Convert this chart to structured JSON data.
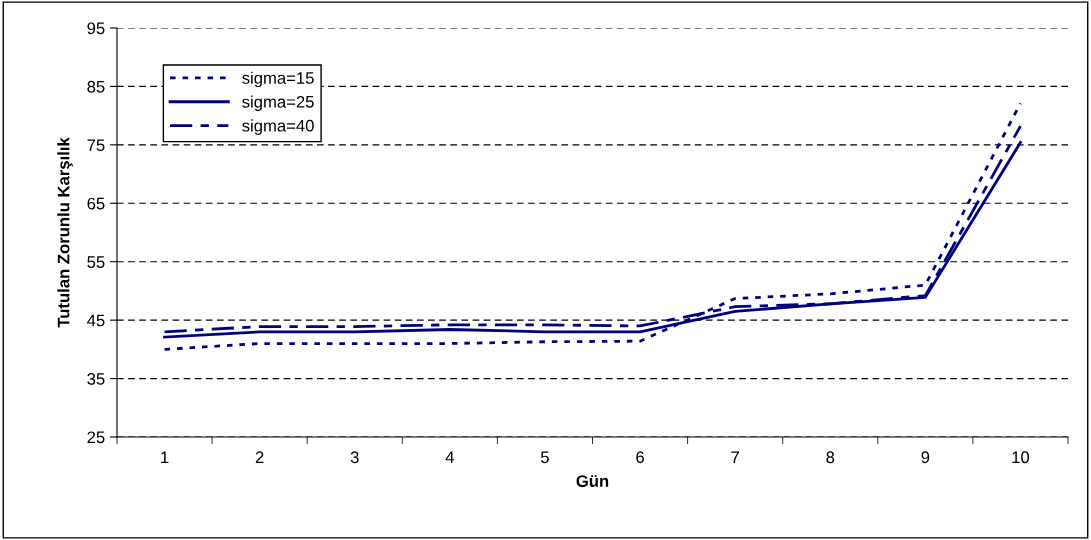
{
  "chart_data": {
    "type": "line",
    "xlabel": "Gün",
    "ylabel": "Tutulan Zorunlu Karşılık",
    "categories": [
      "1",
      "2",
      "3",
      "4",
      "5",
      "6",
      "7",
      "8",
      "9",
      "10"
    ],
    "ylim": [
      25,
      95
    ],
    "yticks": [
      25,
      35,
      45,
      55,
      65,
      75,
      85,
      95
    ],
    "grid": "y",
    "legend": "top left",
    "marker": "none",
    "series": [
      {
        "name": "sigma=15",
        "color": "#000080",
        "line_style": "dotted",
        "values": [
          40.0,
          41.0,
          41.0,
          41.0,
          41.3,
          41.4,
          48.7,
          49.5,
          51.0,
          82.1
        ]
      },
      {
        "name": "sigma=25",
        "color": "#000080",
        "line_style": "solid",
        "values": [
          42.1,
          43.0,
          43.0,
          43.4,
          43.0,
          43.0,
          46.5,
          47.8,
          48.9,
          75.4
        ]
      },
      {
        "name": "sigma=40",
        "color": "#000080",
        "line_style": "dashed",
        "values": [
          43.0,
          43.9,
          43.9,
          44.2,
          44.2,
          44.0,
          47.3,
          47.8,
          49.2,
          78.2
        ]
      }
    ]
  }
}
